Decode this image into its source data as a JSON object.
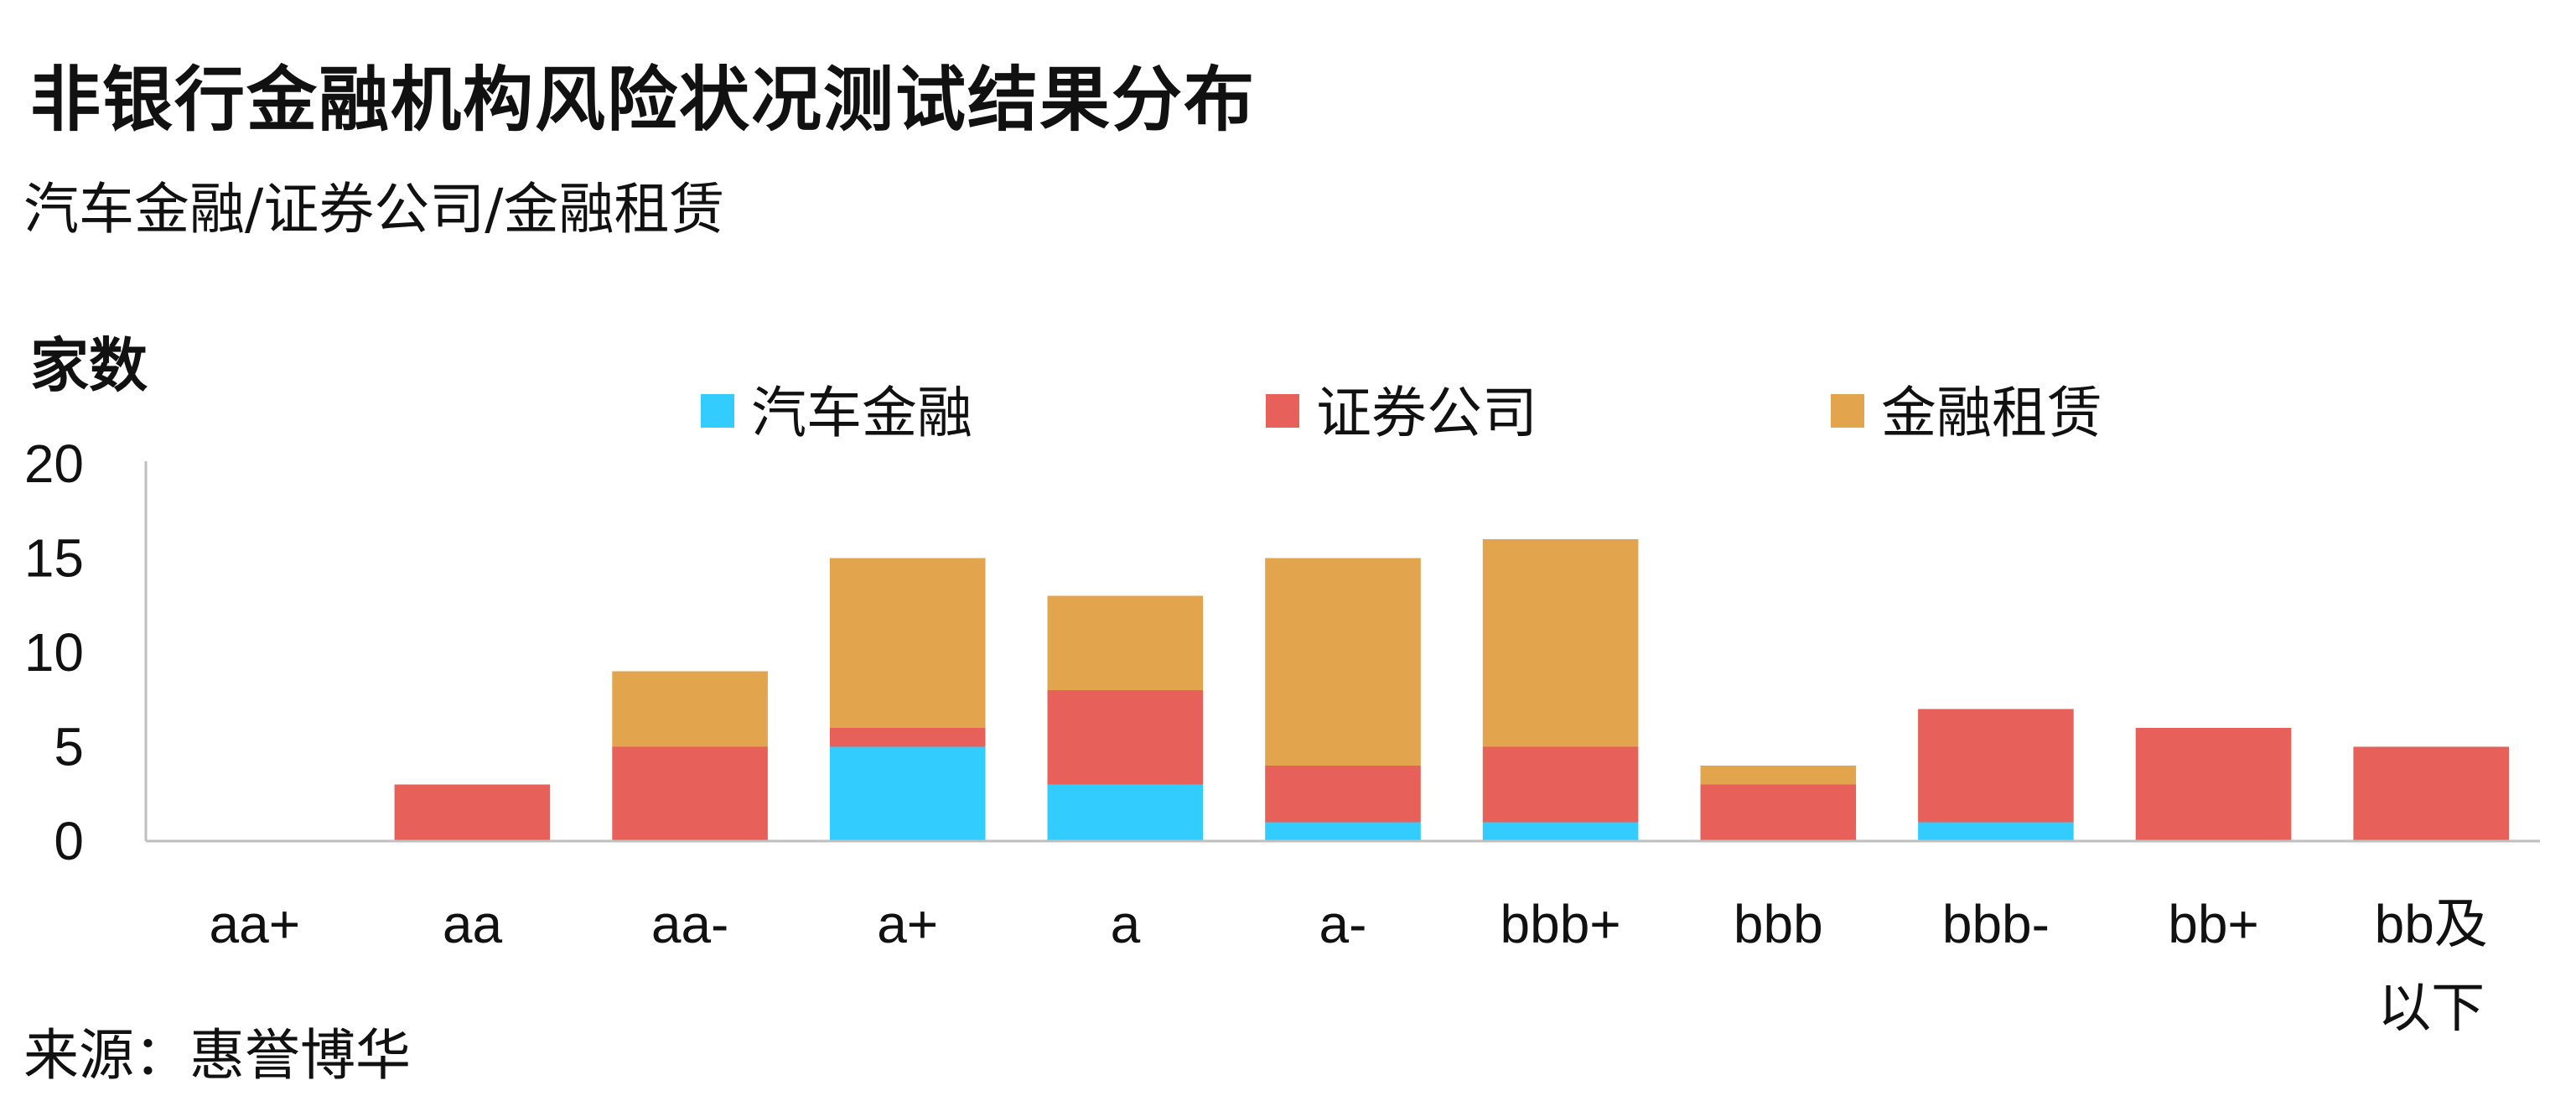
{
  "header": {
    "title": "非银行金融机构风险状况测试结果分布",
    "subtitle": "汽车金融/证券公司/金融租赁"
  },
  "footer": {
    "source": "来源：惠誉博华"
  },
  "chart_data": {
    "type": "bar",
    "stacked": true,
    "ylabel": "家数",
    "xlabel": "",
    "ylim": [
      0,
      20
    ],
    "yticks": [
      0,
      5,
      10,
      15,
      20
    ],
    "grid": false,
    "legend_position": "top",
    "categories": [
      "aa+",
      "aa",
      "aa-",
      "a+",
      "a",
      "a-",
      "bbb+",
      "bbb",
      "bbb-",
      "bb+",
      "bb及以下"
    ],
    "category_lines": [
      [
        "aa+"
      ],
      [
        "aa"
      ],
      [
        "aa-"
      ],
      [
        "a+"
      ],
      [
        "a"
      ],
      [
        "a-"
      ],
      [
        "bbb+"
      ],
      [
        "bbb"
      ],
      [
        "bbb-"
      ],
      [
        "bb+"
      ],
      [
        "bb及",
        "以下"
      ]
    ],
    "series": [
      {
        "name": "汽车金融",
        "color": "#33CCFF",
        "values": [
          0,
          0,
          0,
          5,
          3,
          1,
          1,
          0,
          1,
          0,
          0
        ]
      },
      {
        "name": "证券公司",
        "color": "#E8605A",
        "values": [
          0,
          3,
          5,
          1,
          5,
          3,
          4,
          3,
          6,
          6,
          5
        ]
      },
      {
        "name": "金融租赁",
        "color": "#E3A44E",
        "values": [
          0,
          0,
          4,
          9,
          5,
          11,
          11,
          1,
          0,
          0,
          0
        ]
      }
    ]
  }
}
